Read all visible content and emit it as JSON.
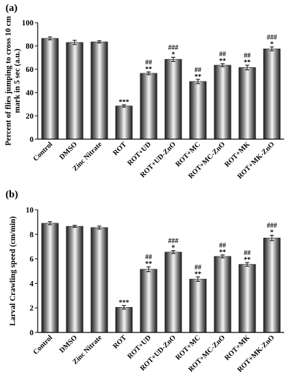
{
  "chart_data": [
    {
      "type": "bar",
      "panel_label": "(a)",
      "ylabel_lines": [
        "Percent of flies jumping to cross 10 cm",
        "mark in 5 sec (a.u.)"
      ],
      "ylim": [
        0,
        100
      ],
      "yticks": [
        0,
        20,
        40,
        60,
        80,
        100
      ],
      "categories": [
        "Control",
        "DMSO",
        "Zinc Nitrate",
        "ROT",
        "ROT+UD",
        "ROT+UD-ZnO",
        "ROT+MC",
        "ROT+MC-ZnO",
        "ROT+MK",
        "ROT+MK-ZnO"
      ],
      "values": [
        86.5,
        83,
        83.5,
        28.5,
        56.5,
        68.5,
        49.5,
        63.5,
        61.5,
        77.5
      ],
      "errors": [
        1.2,
        1.8,
        1.0,
        1.0,
        1.2,
        1.8,
        1.8,
        1.3,
        2.0,
        1.7
      ],
      "sig_star": [
        "",
        "",
        "",
        "***",
        "**",
        "*",
        "**",
        "**",
        "**",
        "*"
      ],
      "sig_hash": [
        "",
        "",
        "",
        "",
        "##",
        "###",
        "##",
        "##",
        "##",
        "###"
      ],
      "grid": false
    },
    {
      "type": "bar",
      "panel_label": "(b)",
      "ylabel_lines": [
        "Larval Crawling speed (cm/min)"
      ],
      "ylim": [
        0,
        10
      ],
      "yticks": [
        0,
        2,
        4,
        6,
        8,
        10
      ],
      "categories": [
        "Control",
        "DMSO",
        "Zinc Nitrate",
        "ROT",
        "ROT+UD",
        "ROT+UD-ZnO",
        "ROT+MC",
        "ROT+MC-ZnO",
        "ROT+MK",
        "ROT+MK-ZnO"
      ],
      "values": [
        8.9,
        8.65,
        8.55,
        2.05,
        5.15,
        6.55,
        4.35,
        6.2,
        5.55,
        7.7
      ],
      "errors": [
        0.12,
        0.08,
        0.12,
        0.15,
        0.2,
        0.12,
        0.18,
        0.12,
        0.15,
        0.22
      ],
      "sig_star": [
        "",
        "",
        "",
        "***",
        "**",
        "*",
        "**",
        "**",
        "**",
        "*"
      ],
      "sig_hash": [
        "",
        "",
        "",
        "",
        "##",
        "###",
        "##",
        "##",
        "##",
        "###"
      ],
      "grid": false
    }
  ],
  "colors": {
    "bar_dark": "#1e1e1e",
    "bar_light": "#f2f2f2",
    "axis": "#000000"
  }
}
